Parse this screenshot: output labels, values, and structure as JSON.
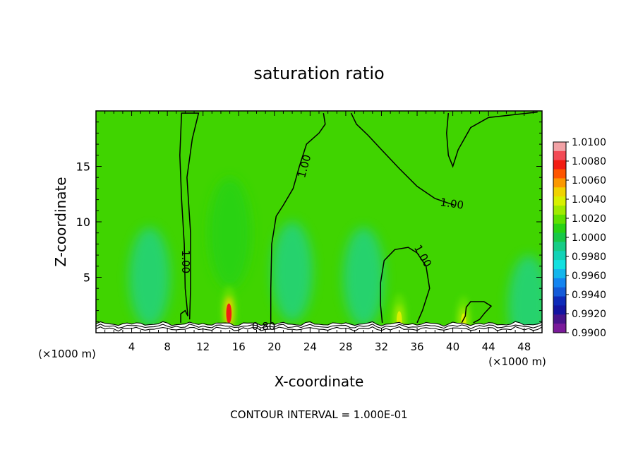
{
  "chart_data": {
    "type": "heatmap",
    "title": "saturation ratio",
    "xlabel": "X-coordinate",
    "ylabel": "Z-coordinate",
    "x_unit_left": "(×1000 m)",
    "x_unit_right": "(×1000 m)",
    "footer": "CONTOUR INTERVAL = 1.000E-01",
    "xlim": [
      0,
      50
    ],
    "ylim": [
      0,
      20
    ],
    "x_ticks": [
      4,
      8,
      12,
      16,
      20,
      24,
      28,
      32,
      36,
      40,
      44,
      48
    ],
    "y_ticks": [
      5,
      10,
      15
    ],
    "contour_labels": [
      {
        "text": "1.00",
        "x": 23.4,
        "y": 15.0,
        "rot": -75
      },
      {
        "text": "1.00",
        "x": 39.9,
        "y": 11.6,
        "rot": 8
      },
      {
        "text": "1.00",
        "x": 10.0,
        "y": 6.4,
        "rot": 90
      },
      {
        "text": "1.00",
        "x": 36.6,
        "y": 6.9,
        "rot": 60
      },
      {
        "text": "0.80",
        "x": 18.8,
        "y": 0.55,
        "rot": 0
      }
    ],
    "contours_1_00": [
      [
        [
          9.5,
          0.9
        ],
        [
          9.5,
          1.7
        ],
        [
          10.0,
          2.0
        ],
        [
          10.3,
          1.5
        ],
        [
          10.0,
          4.0
        ],
        [
          9.9,
          8.0
        ],
        [
          9.6,
          12.0
        ],
        [
          9.4,
          16.0
        ],
        [
          9.6,
          19.8
        ],
        [
          11.5,
          19.8
        ],
        [
          10.8,
          17.5
        ],
        [
          10.2,
          14.0
        ],
        [
          10.6,
          9.0
        ],
        [
          10.6,
          4.0
        ],
        [
          10.5,
          1.2
        ]
      ],
      [
        [
          19.6,
          0.9
        ],
        [
          19.6,
          4.0
        ],
        [
          19.7,
          8.0
        ],
        [
          20.2,
          10.5
        ],
        [
          21.0,
          11.5
        ],
        [
          22.1,
          13.0
        ],
        [
          22.8,
          15.0
        ],
        [
          23.6,
          17.0
        ],
        [
          25.0,
          18.0
        ],
        [
          25.7,
          18.8
        ],
        [
          25.5,
          19.8
        ]
      ],
      [
        [
          28.6,
          19.8
        ],
        [
          29.2,
          18.8
        ],
        [
          30.5,
          17.8
        ],
        [
          32.0,
          16.5
        ],
        [
          34.0,
          14.8
        ],
        [
          36.0,
          13.2
        ],
        [
          38.0,
          12.1
        ],
        [
          40.2,
          11.5
        ]
      ],
      [
        [
          32.1,
          0.9
        ],
        [
          31.9,
          2.5
        ],
        [
          31.9,
          4.5
        ],
        [
          32.3,
          6.5
        ],
        [
          33.5,
          7.5
        ],
        [
          35.0,
          7.7
        ],
        [
          36.0,
          7.2
        ],
        [
          37.0,
          6.0
        ],
        [
          37.4,
          4.0
        ],
        [
          36.6,
          2.0
        ],
        [
          36.0,
          0.9
        ]
      ],
      [
        [
          39.5,
          19.8
        ],
        [
          39.3,
          18.0
        ],
        [
          39.5,
          16.0
        ],
        [
          40.0,
          15.0
        ],
        [
          40.6,
          16.5
        ],
        [
          42.0,
          18.5
        ],
        [
          44.0,
          19.4
        ],
        [
          49.5,
          19.9
        ]
      ],
      [
        [
          41.0,
          0.9
        ],
        [
          41.4,
          1.5
        ],
        [
          41.5,
          2.3
        ],
        [
          42.0,
          2.8
        ],
        [
          43.5,
          2.8
        ],
        [
          44.3,
          2.4
        ],
        [
          43.6,
          1.8
        ],
        [
          43.0,
          1.2
        ],
        [
          42.3,
          0.9
        ]
      ]
    ],
    "colorbar": {
      "labels": [
        "1.0100",
        "1.0080",
        "1.0060",
        "1.0040",
        "1.0020",
        "1.0000",
        "0.9980",
        "0.9960",
        "0.9940",
        "0.9920",
        "0.9900"
      ],
      "colors": [
        "#f2a2a6",
        "#f24a55",
        "#f21c12",
        "#ff5500",
        "#fb9800",
        "#f0d200",
        "#d8f000",
        "#a0ea00",
        "#5ee000",
        "#28d214",
        "#18c848",
        "#16cc86",
        "#12d2b6",
        "#12e0e0",
        "#14b6ec",
        "#1484f0",
        "#145ad8",
        "#0e2ab8",
        "#1414a0",
        "#48148c",
        "#7a1a9a"
      ],
      "band_values": [
        1.0095,
        1.0085,
        1.0075,
        1.0065,
        1.0055,
        1.0045,
        1.0035,
        1.0025,
        1.0015,
        1.0005,
        0.9995,
        0.9985,
        0.9975,
        0.9965,
        0.9955,
        0.9945,
        0.9935,
        0.9925,
        0.9915,
        0.9905
      ]
    },
    "background_color": "#40d400",
    "field_features": [
      {
        "kind": "moist_plume",
        "x": 15.0,
        "z": 9.0,
        "value": 1.0015,
        "rx": 2.4,
        "rz": 5.0
      },
      {
        "kind": "max_core",
        "x": 14.9,
        "z": 2.0,
        "value": 1.008
      },
      {
        "kind": "max_core",
        "x": 34.0,
        "z": 1.3,
        "value": 1.005
      },
      {
        "kind": "max_core",
        "x": 41.2,
        "z": 1.1,
        "value": 1.004
      },
      {
        "kind": "min_region",
        "x": 6.0,
        "z": 5.0,
        "value": 0.9985
      },
      {
        "kind": "min_region",
        "x": 22.0,
        "z": 5.5,
        "value": 0.9985
      },
      {
        "kind": "min_region",
        "x": 30.0,
        "z": 5.0,
        "value": 0.9988
      },
      {
        "kind": "min_region",
        "x": 48.5,
        "z": 2.5,
        "value": 0.9985
      }
    ]
  }
}
